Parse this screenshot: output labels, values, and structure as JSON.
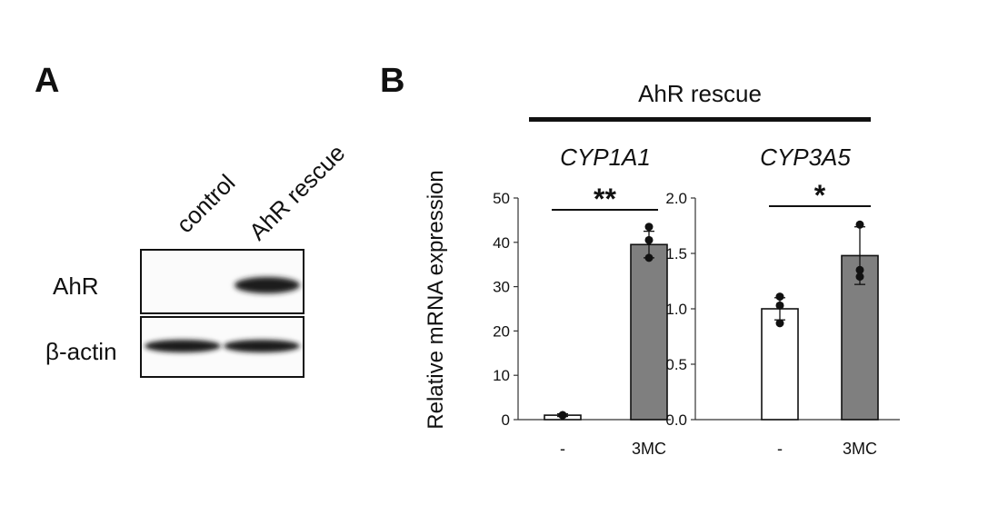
{
  "panel_a": {
    "letter": "A",
    "lanes": [
      "control",
      "AhR rescue"
    ],
    "rows": [
      {
        "label": "AhR",
        "band_intensity": [
          0.0,
          1.0
        ]
      },
      {
        "label": "β-actin",
        "band_intensity": [
          1.0,
          1.0
        ]
      }
    ]
  },
  "panel_b": {
    "letter": "B",
    "group_title": "AhR rescue",
    "ylabel": "Relative mRNA expression"
  },
  "chart_data": [
    {
      "type": "bar",
      "title": "CYP1A1",
      "categories": [
        "-",
        "3MC"
      ],
      "values": [
        1.0,
        39.5
      ],
      "errors": [
        0.3,
        3.0
      ],
      "points": [
        [
          1.0,
          1.0,
          1.0
        ],
        [
          43.5,
          40.5,
          36.5
        ]
      ],
      "ylim": [
        0,
        50
      ],
      "yticks": [
        "0",
        "10",
        "20",
        "30",
        "40",
        "50"
      ],
      "significance": "**",
      "bar_colors": [
        "#ffffff",
        "#7f7f7f"
      ]
    },
    {
      "type": "bar",
      "title": "CYP3A5",
      "categories": [
        "-",
        "3MC"
      ],
      "values": [
        1.0,
        1.48
      ],
      "errors": [
        0.1,
        0.26
      ],
      "points": [
        [
          1.11,
          1.03,
          0.87
        ],
        [
          1.76,
          1.35,
          1.29
        ]
      ],
      "ylim": [
        0,
        2
      ],
      "yticks": [
        "0.0",
        "0.5",
        "1.0",
        "1.5",
        "2.0"
      ],
      "significance": "*",
      "bar_colors": [
        "#ffffff",
        "#7f7f7f"
      ]
    }
  ]
}
